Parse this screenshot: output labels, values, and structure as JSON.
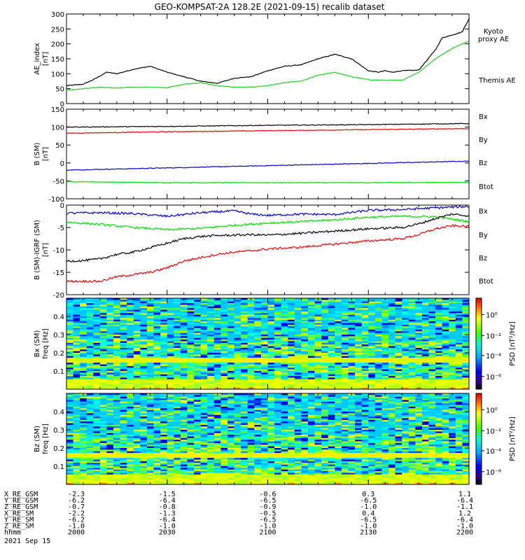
{
  "title": "GEO-KOMPSAT-2A 128.2E (2021-09-15) recalib dataset",
  "colors": {
    "black": "#000000",
    "blue": "#0000cc",
    "green": "#00dd00",
    "red": "#ee0000",
    "kyoto": "#22cc22"
  },
  "chart_data": [
    {
      "type": "line",
      "ylabel": "AE_index",
      "yunit": "[nT]",
      "ylim": [
        0,
        300
      ],
      "yticks": [
        0,
        50,
        100,
        150,
        200,
        250,
        300
      ],
      "xlim": [
        0,
        120
      ],
      "legend": [
        "Kyoto proxy AE",
        "Themis AE"
      ],
      "series": [
        {
          "name": "Themis AE",
          "color": "#000000",
          "x": [
            0,
            5,
            8,
            12,
            15,
            20,
            25,
            30,
            35,
            40,
            45,
            50,
            55,
            60,
            65,
            70,
            75,
            80,
            85,
            90,
            93,
            95,
            97,
            100,
            105,
            110,
            112,
            115,
            118,
            120
          ],
          "y": [
            60,
            65,
            80,
            105,
            100,
            115,
            125,
            105,
            90,
            75,
            68,
            85,
            90,
            110,
            125,
            130,
            150,
            165,
            150,
            110,
            105,
            110,
            105,
            110,
            112,
            180,
            220,
            230,
            240,
            285
          ]
        },
        {
          "name": "Kyoto proxy AE",
          "color": "#22cc22",
          "x": [
            0,
            5,
            10,
            15,
            20,
            25,
            30,
            35,
            40,
            45,
            50,
            55,
            60,
            65,
            70,
            75,
            80,
            85,
            90,
            95,
            100,
            105,
            110,
            115,
            120
          ],
          "y": [
            45,
            50,
            55,
            52,
            55,
            55,
            53,
            65,
            70,
            60,
            55,
            55,
            60,
            70,
            75,
            95,
            105,
            90,
            80,
            78,
            78,
            105,
            150,
            185,
            210
          ]
        }
      ]
    },
    {
      "type": "line",
      "ylabel": "B (SM)",
      "yunit": "[nT]",
      "ylim": [
        -100,
        150
      ],
      "yticks": [
        -100,
        -50,
        0,
        50,
        100,
        150
      ],
      "xlim": [
        0,
        120
      ],
      "legend": [
        "Bx",
        "By",
        "Bz",
        "Btot"
      ],
      "series": [
        {
          "name": "Bx",
          "color": "#0000cc",
          "x": [
            0,
            120
          ],
          "y": [
            -20,
            5
          ]
        },
        {
          "name": "By",
          "color": "#00dd00",
          "x": [
            0,
            30,
            60,
            90,
            120
          ],
          "y": [
            -52,
            -55,
            -55,
            -55,
            -54
          ]
        },
        {
          "name": "Bz",
          "color": "#ee0000",
          "x": [
            0,
            30,
            60,
            90,
            120
          ],
          "y": [
            83,
            87,
            90,
            93,
            96
          ]
        },
        {
          "name": "Btot",
          "color": "#000000",
          "x": [
            0,
            30,
            60,
            90,
            120
          ],
          "y": [
            100,
            102,
            105,
            107,
            110
          ]
        }
      ]
    },
    {
      "type": "line",
      "ylabel": "B (SM)-IGRF (SM)",
      "yunit": "[nT]",
      "ylim": [
        -20,
        0
      ],
      "yticks": [
        -20,
        -15,
        -10,
        -5,
        0
      ],
      "xlim": [
        0,
        120
      ],
      "legend": [
        "Bx",
        "By",
        "Bz",
        "Btot"
      ],
      "series": [
        {
          "name": "Bx",
          "color": "#0000cc",
          "x": [
            0,
            10,
            20,
            30,
            40,
            50,
            55,
            60,
            70,
            80,
            90,
            100,
            110,
            120
          ],
          "y": [
            -1.8,
            -1.7,
            -1.9,
            -2.5,
            -1.7,
            -1.3,
            -2.0,
            -2.3,
            -2.0,
            -2.1,
            -1.2,
            -1.0,
            -0.6,
            -0.3
          ]
        },
        {
          "name": "By",
          "color": "#00dd00",
          "x": [
            0,
            10,
            20,
            30,
            40,
            50,
            60,
            70,
            80,
            90,
            100,
            110,
            120
          ],
          "y": [
            -3.8,
            -4.3,
            -5.0,
            -5.5,
            -5.2,
            -4.5,
            -4.0,
            -3.7,
            -3.3,
            -2.7,
            -2.5,
            -2.6,
            -3.7
          ]
        },
        {
          "name": "Bz",
          "color": "#ee0000",
          "x": [
            0,
            5,
            10,
            15,
            20,
            25,
            30,
            35,
            40,
            45,
            50,
            55,
            60,
            70,
            80,
            90,
            100,
            105,
            110,
            115,
            120
          ],
          "y": [
            -17,
            -17,
            -17,
            -16,
            -15.5,
            -15,
            -14,
            -12.5,
            -11.7,
            -11,
            -10.5,
            -10.2,
            -9.8,
            -9.4,
            -8.7,
            -8.0,
            -7.5,
            -6.6,
            -5.3,
            -4.6,
            -4.8
          ]
        },
        {
          "name": "Btot",
          "color": "#000000",
          "x": [
            0,
            5,
            10,
            15,
            20,
            25,
            30,
            35,
            40,
            45,
            50,
            55,
            60,
            70,
            80,
            90,
            100,
            105,
            110,
            115,
            120
          ],
          "y": [
            -12.5,
            -12.4,
            -12,
            -11,
            -10.5,
            -9.5,
            -8.5,
            -7.5,
            -7.0,
            -6.8,
            -6.7,
            -6.6,
            -6.7,
            -6.3,
            -5.8,
            -5.3,
            -5.0,
            -4.2,
            -3.0,
            -2.0,
            -2.4
          ]
        }
      ]
    },
    {
      "type": "heatmap",
      "ylabel": "Bx (SM)",
      "yunit": "freq [Hz]",
      "ylim": [
        0,
        0.5
      ],
      "yticks": [
        0.1,
        0.2,
        0.3,
        0.4
      ],
      "xlim": [
        0,
        120
      ],
      "colorbar_label": "PSD [nT²/Hz]",
      "colorbar_ticks": [
        "10⁰",
        "10⁻²",
        "10⁻⁴",
        "10⁻⁶"
      ]
    },
    {
      "type": "heatmap",
      "ylabel": "Bz (SM)",
      "yunit": "freq [Hz]",
      "ylim": [
        0,
        0.5
      ],
      "yticks": [
        0.1,
        0.2,
        0.3,
        0.4
      ],
      "xlim": [
        0,
        120
      ],
      "colorbar_label": "PSD [nT²/Hz]",
      "colorbar_ticks": [
        "10⁰",
        "10⁻²",
        "10⁻⁴",
        "10⁻⁶"
      ]
    }
  ],
  "ephemeris": {
    "row_labels": [
      "X_RE_GSM",
      "Y_RE_GSM",
      "Z_RE_GSM",
      "X_RE_SM",
      "Y_RE_SM",
      "Z_RE_SM",
      "hhmm"
    ],
    "columns": [
      [
        "-2.3",
        "-6.2",
        "-0.7",
        "-2.2",
        "-6.2",
        "-1.0",
        "2000"
      ],
      [
        "-1.5",
        "-6.4",
        "-0.8",
        "-1.3",
        "-6.4",
        "-1.0",
        "2030"
      ],
      [
        "-0.6",
        "-6.5",
        "-0.9",
        "-0.5",
        "-6.5",
        "-1.0",
        "2100"
      ],
      [
        "0.3",
        "-6.5",
        "-1.0",
        "0.4",
        "-6.5",
        "-1.0",
        "2130"
      ],
      [
        "1.1",
        "-6.4",
        "-1.1",
        "1.2",
        "-6.4",
        "-1.0",
        "2200"
      ]
    ],
    "date": "2021 Sep 15"
  }
}
